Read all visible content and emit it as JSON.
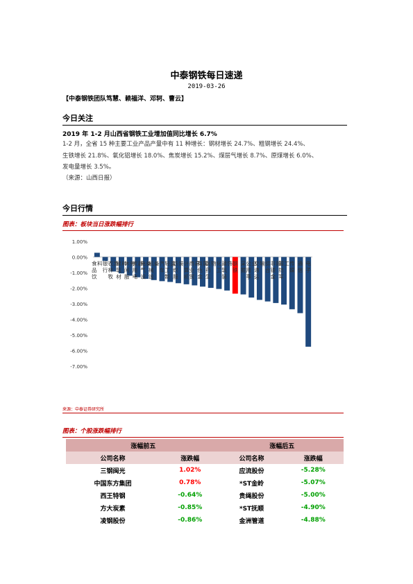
{
  "title": "中泰钢铁每日速递",
  "date": "2019-03-26",
  "team": "【中泰钢铁团队笃慧、赖福洋、邓轲、曹云】",
  "section1": {
    "title": "今日关注",
    "headline": "2019 年 1-2 月山西省钢铁工业增加值同比增长 6.7%",
    "body": [
      "1-2 月，全省 15 种主要工业产品产量中有 11 种增长：钢材增长 24.7%、粗钢增长 24.4%、",
      "生铁增长 21.8%、氧化铝增长 18.0%、焦炭增长 15.2%、煤层气增长 8.7%、原煤增长 6.0%、",
      "发电量增长 3.5%。"
    ],
    "source": "（来源：山西日报）"
  },
  "section2": {
    "title": "今日行情",
    "figure1_title": "图表：板块当日涨跌幅排行",
    "figure1_source": "来源：中泰证券研究所",
    "figure2_title": "图表：个股涨跌幅排行"
  },
  "chart_data": {
    "type": "bar",
    "title": "",
    "xlabel": "",
    "ylabel": "",
    "ylim": [
      -7,
      1
    ],
    "yticks": [
      "1.00%",
      "0.00%",
      "-1.00%",
      "-2.00%",
      "-3.00%",
      "-4.00%",
      "-5.00%",
      "-6.00%",
      "-7.00%"
    ],
    "categories": [
      "食品饮料",
      "银行",
      "农林牧渔",
      "建筑材料",
      "休闲服务",
      "家用电器",
      "电气设备",
      "机械设备",
      "汽车",
      "轻工制造",
      "纺织服装",
      "计算机",
      "商业贸易",
      "有色金属",
      "医药生物",
      "化工",
      "建筑装饰",
      "钢铁",
      "采掘",
      "公用事业",
      "交通运输",
      "综合",
      "非银金融",
      "国防军工",
      "传媒",
      "通信",
      "电子"
    ],
    "values": [
      0.27,
      -0.25,
      -0.93,
      -1.05,
      -1.2,
      -1.3,
      -1.4,
      -1.48,
      -1.55,
      -1.6,
      -1.68,
      -1.75,
      -1.82,
      -1.9,
      -1.98,
      -2.05,
      -2.15,
      -2.35,
      -2.4,
      -2.6,
      -2.75,
      -2.85,
      -2.95,
      -3.05,
      -3.35,
      -3.6,
      -5.75
    ],
    "highlight_index": 17,
    "bar_color": "#1f497d",
    "highlight_color": "#ff0000",
    "grid": false
  },
  "stock_table": {
    "top_header": "涨幅前五",
    "bottom_header": "涨幅后五",
    "col_name": "公司名称",
    "col_change": "涨跌幅",
    "top": [
      {
        "name": "三钢闽光",
        "change": "1.02%",
        "dir": "up"
      },
      {
        "name": "中国东方集团",
        "change": "0.78%",
        "dir": "up"
      },
      {
        "name": "西王特钢",
        "change": "-0.64%",
        "dir": "down"
      },
      {
        "name": "方大炭素",
        "change": "-0.85%",
        "dir": "down"
      },
      {
        "name": "凌钢股份",
        "change": "-0.86%",
        "dir": "down"
      }
    ],
    "bottom": [
      {
        "name": "应流股份",
        "change": "-5.28%",
        "dir": "down"
      },
      {
        "name": "*ST金岭",
        "change": "-5.07%",
        "dir": "down"
      },
      {
        "name": "贵绳股份",
        "change": "-5.00%",
        "dir": "down"
      },
      {
        "name": "*ST抚顺",
        "change": "-4.90%",
        "dir": "down"
      },
      {
        "name": "金洲管道",
        "change": "-4.88%",
        "dir": "down"
      }
    ]
  }
}
